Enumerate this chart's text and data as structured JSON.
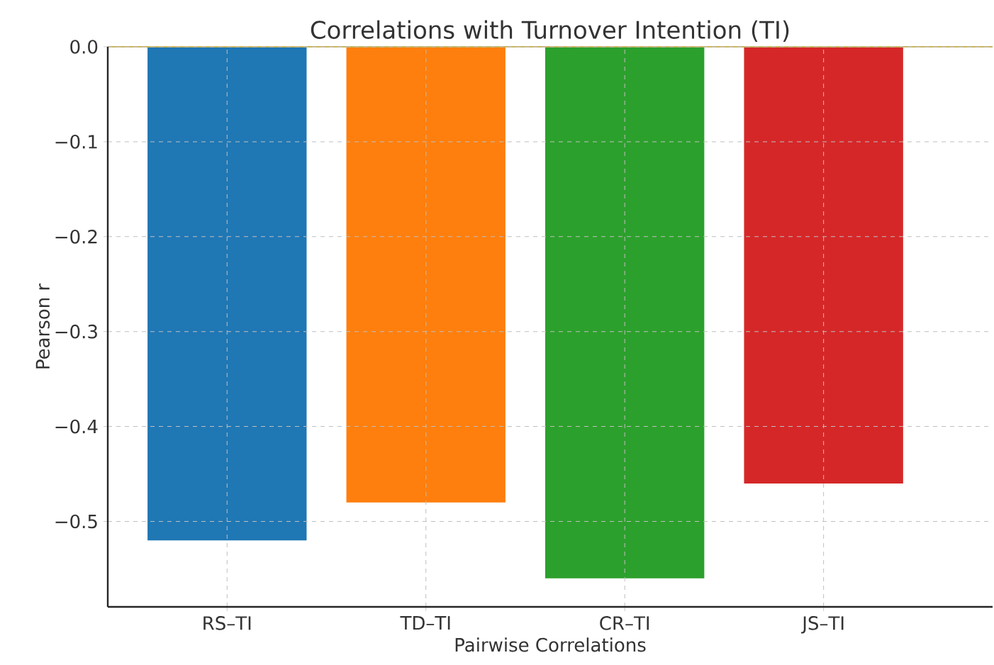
{
  "chart_data": {
    "type": "bar",
    "title": "Correlations with Turnover Intention (TI)",
    "xlabel": "Pairwise Correlations",
    "ylabel": "Pearson r",
    "categories": [
      "RS–TI",
      "TD–TI",
      "CR–TI",
      "JS–TI"
    ],
    "values": [
      -0.52,
      -0.48,
      -0.56,
      -0.46
    ],
    "colors": [
      "#1f77b4",
      "#ff7f0e",
      "#2ca02c",
      "#d62728"
    ],
    "ylim": [
      -0.59,
      0.0
    ],
    "yticks": [
      {
        "value": -0.5,
        "label": "−0.5"
      },
      {
        "value": -0.4,
        "label": "−0.4"
      },
      {
        "value": -0.3,
        "label": "−0.3"
      },
      {
        "value": -0.2,
        "label": "−0.2"
      },
      {
        "value": -0.1,
        "label": "−0.1"
      },
      {
        "value": 0,
        "label": "0.0"
      }
    ],
    "grid": true,
    "ref_lines": [
      {
        "axis": "y",
        "value": 0,
        "color": "#c8b560"
      }
    ]
  }
}
